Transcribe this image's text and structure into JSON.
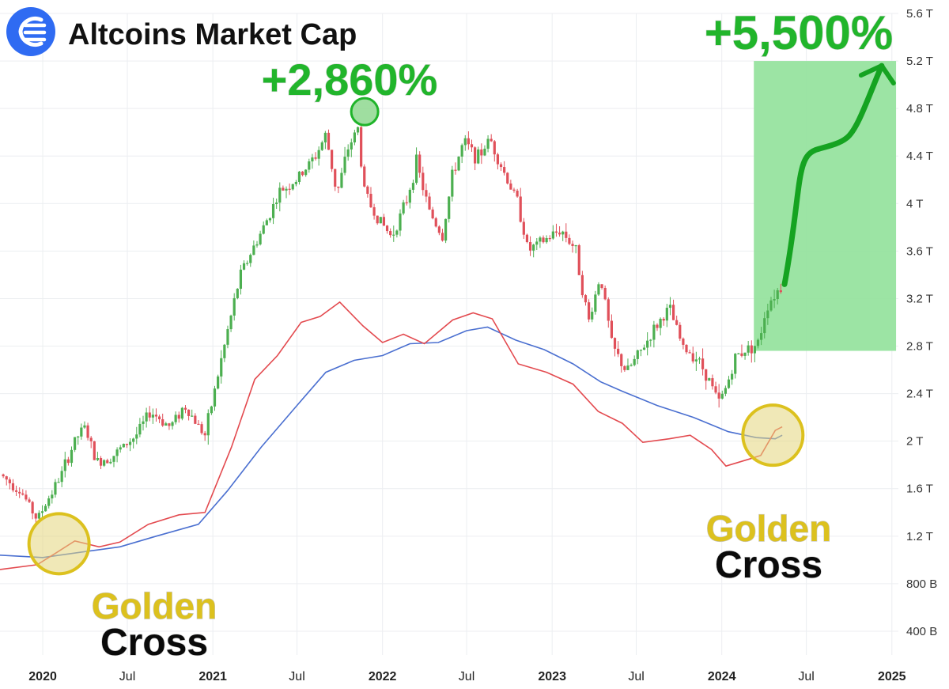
{
  "colors": {
    "up": "#26a69a",
    "up_candle": "#4caf50",
    "down_candle": "#e0505a",
    "ma_fast": "#e34a4f",
    "ma_slow": "#4a6fd0",
    "projection_fill": "#94e29c",
    "projection_arrow": "#15a321",
    "gold": "#dcc11e",
    "logo": "#2f6bf2"
  },
  "header": {
    "logo_icon": "wind-logo-icon",
    "title": "Altcoins Market Cap"
  },
  "chart_data": {
    "type": "candlestick",
    "title": "Altcoins Market Cap",
    "y_scale": "linear",
    "ylim": [
      200000000000,
      5600000000000
    ],
    "y_ticks": [
      {
        "value": 400000000000,
        "label": "400 B"
      },
      {
        "value": 800000000000,
        "label": "800 B"
      },
      {
        "value": 1200000000000,
        "label": "1.2 T"
      },
      {
        "value": 1600000000000,
        "label": "1.6 T"
      },
      {
        "value": 2000000000000,
        "label": "2 T"
      },
      {
        "value": 2400000000000,
        "label": "2.4 T"
      },
      {
        "value": 2800000000000,
        "label": "2.8 T"
      },
      {
        "value": 3200000000000,
        "label": "3.2 T"
      },
      {
        "value": 3600000000000,
        "label": "3.6 T"
      },
      {
        "value": 4000000000000,
        "label": "4 T"
      },
      {
        "value": 4400000000000,
        "label": "4.4 T"
      },
      {
        "value": 4800000000000,
        "label": "4.8 T"
      },
      {
        "value": 5200000000000,
        "label": "5.2 T"
      },
      {
        "value": 5600000000000,
        "label": "5.6 T"
      }
    ],
    "x_range": [
      "2019-10-01",
      "2025-01-15"
    ],
    "x_ticks": [
      {
        "date": "2020-01-01",
        "label": "2020",
        "bold": true
      },
      {
        "date": "2020-07-01",
        "label": "Jul",
        "bold": false
      },
      {
        "date": "2021-01-01",
        "label": "2021",
        "bold": true
      },
      {
        "date": "2021-07-01",
        "label": "Jul",
        "bold": false
      },
      {
        "date": "2022-01-01",
        "label": "2022",
        "bold": true
      },
      {
        "date": "2022-07-01",
        "label": "Jul",
        "bold": false
      },
      {
        "date": "2023-01-01",
        "label": "2023",
        "bold": true
      },
      {
        "date": "2023-07-01",
        "label": "Jul",
        "bold": false
      },
      {
        "date": "2024-01-01",
        "label": "2024",
        "bold": true
      },
      {
        "date": "2024-07-01",
        "label": "Jul",
        "bold": false
      },
      {
        "date": "2025-01-01",
        "label": "2025",
        "bold": true
      }
    ],
    "price_path": [
      [
        "2019-10-01",
        1.72
      ],
      [
        "2019-11-15",
        1.58
      ],
      [
        "2019-12-20",
        1.34
      ],
      [
        "2020-02-10",
        1.72
      ],
      [
        "2020-03-12",
        2.02
      ],
      [
        "2020-04-01",
        2.12
      ],
      [
        "2020-04-25",
        1.82
      ],
      [
        "2020-06-01",
        1.88
      ],
      [
        "2020-07-20",
        2.05
      ],
      [
        "2020-08-20",
        2.25
      ],
      [
        "2020-10-01",
        2.12
      ],
      [
        "2020-11-01",
        2.3
      ],
      [
        "2020-12-15",
        2.05
      ],
      [
        "2021-01-20",
        2.7
      ],
      [
        "2021-03-01",
        3.4
      ],
      [
        "2021-04-20",
        3.8
      ],
      [
        "2021-05-25",
        4.1
      ],
      [
        "2021-07-01",
        4.2
      ],
      [
        "2021-08-10",
        4.4
      ],
      [
        "2021-09-01",
        4.58
      ],
      [
        "2021-09-25",
        4.08
      ],
      [
        "2021-10-20",
        4.48
      ],
      [
        "2021-11-10",
        4.64
      ],
      [
        "2021-11-20",
        4.15
      ],
      [
        "2021-12-10",
        3.95
      ],
      [
        "2022-01-20",
        3.72
      ],
      [
        "2022-02-20",
        4.0
      ],
      [
        "2022-03-15",
        4.35
      ],
      [
        "2022-04-10",
        3.95
      ],
      [
        "2022-05-10",
        3.72
      ],
      [
        "2022-06-01",
        4.25
      ],
      [
        "2022-06-25",
        4.52
      ],
      [
        "2022-07-25",
        4.38
      ],
      [
        "2022-08-20",
        4.55
      ],
      [
        "2022-09-15",
        4.3
      ],
      [
        "2022-10-20",
        4.0
      ],
      [
        "2022-11-10",
        3.6
      ],
      [
        "2022-12-20",
        3.7
      ],
      [
        "2023-01-20",
        3.78
      ],
      [
        "2023-02-20",
        3.62
      ],
      [
        "2023-03-20",
        3.0
      ],
      [
        "2023-04-15",
        3.4
      ],
      [
        "2023-05-10",
        2.8
      ],
      [
        "2023-06-10",
        2.58
      ],
      [
        "2023-07-10",
        2.75
      ],
      [
        "2023-08-10",
        2.95
      ],
      [
        "2023-09-10",
        3.12
      ],
      [
        "2023-10-10",
        2.78
      ],
      [
        "2023-11-05",
        2.72
      ],
      [
        "2023-12-01",
        2.55
      ],
      [
        "2023-12-25",
        2.32
      ],
      [
        "2024-01-10",
        2.45
      ],
      [
        "2024-02-01",
        2.72
      ],
      [
        "2024-02-25",
        2.78
      ],
      [
        "2024-03-20",
        2.82
      ],
      [
        "2024-04-05",
        3.12
      ],
      [
        "2024-04-25",
        3.25
      ],
      [
        "2024-05-10",
        3.3
      ]
    ],
    "ma_fast": [
      [
        "2019-10-01",
        0.92
      ],
      [
        "2019-12-20",
        0.96
      ],
      [
        "2020-01-30",
        1.06
      ],
      [
        "2020-03-10",
        1.16
      ],
      [
        "2020-05-01",
        1.11
      ],
      [
        "2020-06-15",
        1.15
      ],
      [
        "2020-08-15",
        1.3
      ],
      [
        "2020-10-20",
        1.38
      ],
      [
        "2020-12-15",
        1.4
      ],
      [
        "2021-02-10",
        1.95
      ],
      [
        "2021-04-01",
        2.52
      ],
      [
        "2021-05-20",
        2.72
      ],
      [
        "2021-07-10",
        3.0
      ],
      [
        "2021-08-20",
        3.05
      ],
      [
        "2021-10-01",
        3.17
      ],
      [
        "2021-11-20",
        2.97
      ],
      [
        "2022-01-01",
        2.83
      ],
      [
        "2022-02-15",
        2.9
      ],
      [
        "2022-04-01",
        2.82
      ],
      [
        "2022-06-01",
        3.02
      ],
      [
        "2022-07-15",
        3.08
      ],
      [
        "2022-08-25",
        3.03
      ],
      [
        "2022-10-20",
        2.65
      ],
      [
        "2022-12-20",
        2.58
      ],
      [
        "2023-02-15",
        2.48
      ],
      [
        "2023-04-10",
        2.25
      ],
      [
        "2023-06-01",
        2.15
      ],
      [
        "2023-07-15",
        1.99
      ],
      [
        "2023-09-10",
        2.02
      ],
      [
        "2023-10-25",
        2.05
      ],
      [
        "2023-12-10",
        1.93
      ],
      [
        "2024-01-10",
        1.79
      ],
      [
        "2024-03-01",
        1.85
      ],
      [
        "2024-03-25",
        1.88
      ],
      [
        "2024-04-25",
        2.09
      ],
      [
        "2024-05-10",
        2.12
      ]
    ],
    "ma_slow": [
      [
        "2019-10-01",
        1.04
      ],
      [
        "2020-01-01",
        1.02
      ],
      [
        "2020-04-01",
        1.07
      ],
      [
        "2020-06-15",
        1.11
      ],
      [
        "2020-09-01",
        1.2
      ],
      [
        "2020-12-01",
        1.3
      ],
      [
        "2021-02-01",
        1.58
      ],
      [
        "2021-04-15",
        1.95
      ],
      [
        "2021-07-01",
        2.3
      ],
      [
        "2021-09-01",
        2.58
      ],
      [
        "2021-11-01",
        2.68
      ],
      [
        "2022-01-01",
        2.72
      ],
      [
        "2022-03-01",
        2.82
      ],
      [
        "2022-05-01",
        2.83
      ],
      [
        "2022-07-01",
        2.93
      ],
      [
        "2022-08-15",
        2.96
      ],
      [
        "2022-10-15",
        2.85
      ],
      [
        "2022-12-15",
        2.77
      ],
      [
        "2023-02-15",
        2.65
      ],
      [
        "2023-04-15",
        2.5
      ],
      [
        "2023-06-01",
        2.42
      ],
      [
        "2023-08-15",
        2.3
      ],
      [
        "2023-11-01",
        2.2
      ],
      [
        "2024-01-15",
        2.08
      ],
      [
        "2024-03-15",
        2.03
      ],
      [
        "2024-04-25",
        2.02
      ],
      [
        "2024-05-10",
        2.05
      ]
    ],
    "legend": [],
    "grid": true
  },
  "annotations": {
    "peak_change": {
      "label": "+2,860%",
      "date": "2021-11-10",
      "value": 4.64
    },
    "target_change": {
      "label": "+5,500%"
    },
    "projection_zone": {
      "start": "2024-03-10",
      "end": "2025-01-10",
      "low": 2.76,
      "high": 5.2
    },
    "projection_path": [
      [
        "2024-05-15",
        3.32
      ],
      [
        "2024-07-20",
        4.45
      ],
      [
        "2024-09-25",
        4.55
      ],
      [
        "2024-11-20",
        4.95
      ],
      [
        "2024-12-10",
        5.16
      ]
    ],
    "golden_cross_1": {
      "date": "2020-02-05",
      "value": 1.07,
      "word1": "Golden",
      "word2": "Cross"
    },
    "golden_cross_2": {
      "date": "2024-04-20",
      "value": 2.05,
      "word1": "Golden",
      "word2": "Cross"
    }
  }
}
